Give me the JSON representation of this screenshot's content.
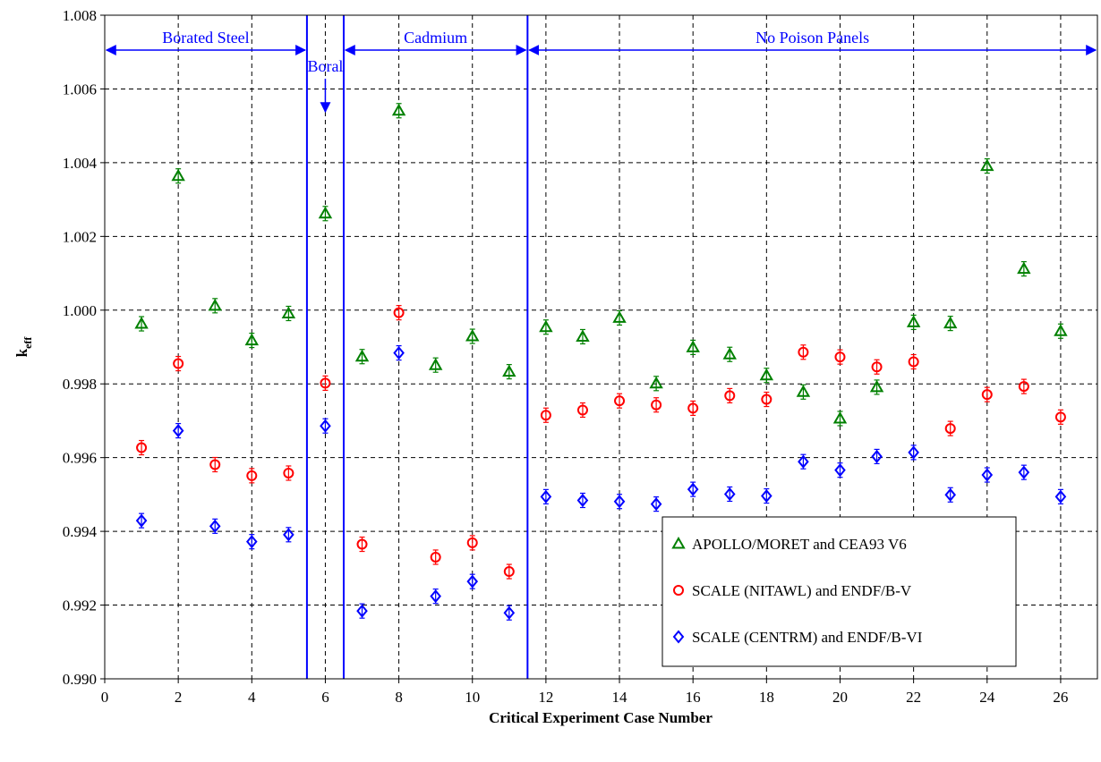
{
  "chart_data": {
    "type": "scatter",
    "xlabel": "Critical Experiment Case Number",
    "ylabel": "k",
    "ylabel_sub": "eff",
    "xlim": [
      0,
      27
    ],
    "ylim": [
      0.99,
      1.008
    ],
    "x_ticks": [
      0,
      2,
      4,
      6,
      8,
      10,
      12,
      14,
      16,
      18,
      20,
      22,
      24,
      26
    ],
    "y_ticks": [
      "0.990",
      "0.992",
      "0.994",
      "0.996",
      "0.998",
      "1.000",
      "1.002",
      "1.004",
      "1.006",
      "1.008"
    ],
    "grid": true,
    "legend_position": "bottom-right",
    "region_dividers": [
      5.5,
      6.5,
      11.5
    ],
    "regions": [
      {
        "label": "Borated Steel",
        "x_start": 0,
        "x_end": 5.5
      },
      {
        "label": "Boral",
        "x_at": 6
      },
      {
        "label": "Cadmium",
        "x_start": 6.5,
        "x_end": 11.5
      },
      {
        "label": "No Poison Panels",
        "x_start": 11.5,
        "x_end": 27
      }
    ],
    "series": [
      {
        "name": "APOLLO/MORET and CEA93 V6",
        "color": "#008000",
        "marker": "triangle",
        "x": [
          1,
          2,
          3,
          4,
          5,
          6,
          7,
          8,
          9,
          10,
          11,
          12,
          13,
          14,
          15,
          16,
          17,
          18,
          19,
          20,
          21,
          22,
          23,
          24,
          25,
          26
        ],
        "y": [
          0.99963,
          1.00364,
          1.00012,
          0.99918,
          0.99991,
          1.00262,
          0.99874,
          1.00541,
          0.99851,
          0.99929,
          0.99833,
          0.99954,
          0.99928,
          0.99979,
          0.99801,
          0.99899,
          0.9988,
          0.99823,
          0.99778,
          0.99706,
          0.99791,
          0.99967,
          0.99964,
          1.00391,
          1.00112,
          0.99943
        ]
      },
      {
        "name": "SCALE (NITAWL) and ENDF/B-V",
        "color": "#ff0000",
        "marker": "circle",
        "x": [
          1,
          2,
          3,
          4,
          5,
          6,
          7,
          8,
          9,
          10,
          11,
          12,
          13,
          14,
          15,
          16,
          17,
          18,
          19,
          20,
          21,
          22,
          23,
          24,
          25,
          26
        ],
        "y": [
          0.99627,
          0.99855,
          0.99581,
          0.99551,
          0.99558,
          0.99802,
          0.99365,
          0.99993,
          0.9933,
          0.99369,
          0.99291,
          0.99715,
          0.99729,
          0.99754,
          0.99743,
          0.99734,
          0.99768,
          0.99758,
          0.99886,
          0.99873,
          0.99846,
          0.9986,
          0.99679,
          0.99771,
          0.99793,
          0.9971
        ]
      },
      {
        "name": "SCALE (CENTRM) and ENDF/B-VI",
        "color": "#0000ff",
        "marker": "diamond",
        "x": [
          1,
          2,
          3,
          4,
          5,
          6,
          7,
          8,
          9,
          10,
          11,
          12,
          13,
          14,
          15,
          16,
          17,
          18,
          19,
          20,
          21,
          22,
          23,
          24,
          25,
          26
        ],
        "y": [
          0.99429,
          0.99673,
          0.99414,
          0.99372,
          0.99391,
          0.99686,
          0.99184,
          0.99884,
          0.99224,
          0.99264,
          0.99179,
          0.99494,
          0.99484,
          0.99481,
          0.99474,
          0.99514,
          0.99501,
          0.99496,
          0.99589,
          0.99566,
          0.99603,
          0.99614,
          0.99499,
          0.99553,
          0.9956,
          0.99494
        ]
      }
    ]
  }
}
